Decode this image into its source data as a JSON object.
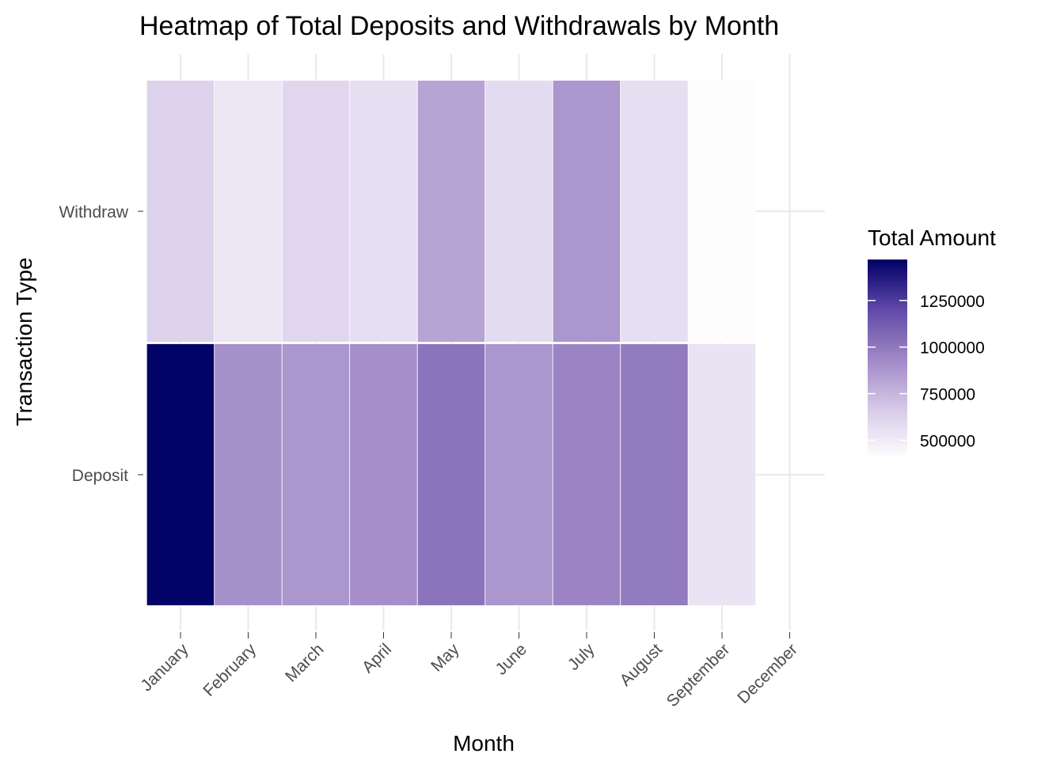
{
  "chart_data": {
    "type": "heatmap",
    "title": "Heatmap of Total Deposits and Withdrawals by Month",
    "xlabel": "Month",
    "ylabel": "Transaction Type",
    "x_categories": [
      "January",
      "February",
      "March",
      "April",
      "May",
      "June",
      "July",
      "August",
      "September",
      "December"
    ],
    "y_categories": [
      "Deposit",
      "Withdraw"
    ],
    "cells": [
      {
        "x": "January",
        "y": "Withdraw",
        "value": 620000
      },
      {
        "x": "February",
        "y": "Withdraw",
        "value": 530000
      },
      {
        "x": "March",
        "y": "Withdraw",
        "value": 600000
      },
      {
        "x": "April",
        "y": "Withdraw",
        "value": 560000
      },
      {
        "x": "May",
        "y": "Withdraw",
        "value": 820000
      },
      {
        "x": "June",
        "y": "Withdraw",
        "value": 580000
      },
      {
        "x": "July",
        "y": "Withdraw",
        "value": 880000
      },
      {
        "x": "August",
        "y": "Withdraw",
        "value": 560000
      },
      {
        "x": "September",
        "y": "Withdraw",
        "value": 410000
      },
      {
        "x": "January",
        "y": "Deposit",
        "value": 1460000
      },
      {
        "x": "February",
        "y": "Deposit",
        "value": 900000
      },
      {
        "x": "March",
        "y": "Deposit",
        "value": 880000
      },
      {
        "x": "April",
        "y": "Deposit",
        "value": 910000
      },
      {
        "x": "May",
        "y": "Deposit",
        "value": 1020000
      },
      {
        "x": "June",
        "y": "Deposit",
        "value": 880000
      },
      {
        "x": "July",
        "y": "Deposit",
        "value": 950000
      },
      {
        "x": "August",
        "y": "Deposit",
        "value": 990000
      },
      {
        "x": "September",
        "y": "Deposit",
        "value": 540000
      }
    ],
    "legend": {
      "title": "Total Amount",
      "position": "right",
      "ticks": [
        500000,
        750000,
        1000000,
        1250000
      ],
      "range": [
        400000,
        1470000
      ],
      "low_color": "#ffffff",
      "high_color": "#000066"
    },
    "grid": true
  }
}
